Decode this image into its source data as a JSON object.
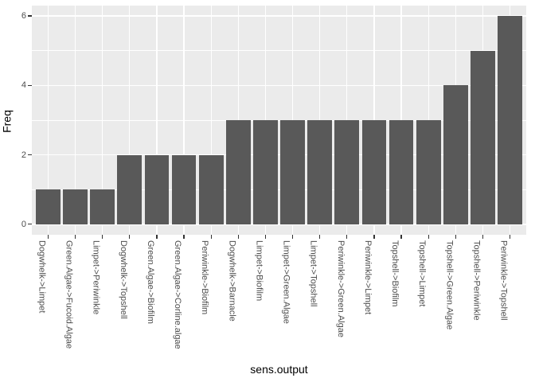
{
  "chart_data": {
    "type": "bar",
    "xlabel": "sens.output",
    "ylabel": "Freq",
    "categories": [
      "Dogwhelk->Limpet",
      "Green.Algae->Fucoid.Algae",
      "Limpet->Periwinkle",
      "Dogwhelk->Topshell",
      "Green.Algae->Biofilm",
      "Green.Algae->Corline.algae",
      "Periwinkle->Biofilm",
      "Dogwhelk->Barnacle",
      "Limpet->Biofilm",
      "Limpet->Green.Algae",
      "Limpet->Topshell",
      "Periwinkle->Green.Algae",
      "Periwinkle->Limpet",
      "Topshell->Biofilm",
      "Topshell->Limpet",
      "Topshell->Green.Algae",
      "Topshell->Periwinkle",
      "Periwinkle->Topshell"
    ],
    "values": [
      1,
      1,
      1,
      2,
      2,
      2,
      2,
      3,
      3,
      3,
      3,
      3,
      3,
      3,
      3,
      4,
      5,
      6
    ],
    "y_major_ticks": [
      0,
      2,
      4,
      6
    ],
    "y_minor_ticks": [
      1,
      3,
      5
    ],
    "ylim": [
      -0.3,
      6.3
    ],
    "x_expand": 0.6,
    "bar_width_fraction": 0.9,
    "legend": "none",
    "grid": "horizontal major+minor, vertical major at category centers",
    "colors": {
      "figure_background": "#FFFFFF",
      "panel_background": "#EBEBEB",
      "grid_line": "#FFFFFF",
      "bar_fill": "#595959",
      "tick_mark": "#333333",
      "tick_label": "#4D4D4D",
      "axis_title": "#000000"
    }
  }
}
